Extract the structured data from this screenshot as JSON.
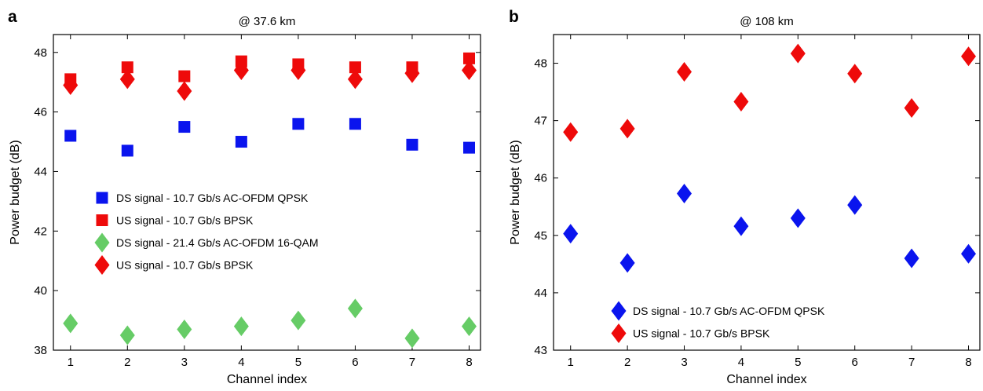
{
  "chart_data": [
    {
      "type": "scatter",
      "panel_label": "a",
      "title": "@ 37.6 km",
      "xlabel": "Channel index",
      "ylabel": "Power budget (dB)",
      "x": [
        1,
        2,
        3,
        4,
        5,
        6,
        7,
        8
      ],
      "xlim": [
        0.7,
        8.2
      ],
      "ylim": [
        38,
        48.6
      ],
      "xticks": [
        1,
        2,
        3,
        4,
        5,
        6,
        7,
        8
      ],
      "yticks": [
        38,
        40,
        42,
        44,
        46,
        48
      ],
      "grid": false,
      "legend_position": "center-left",
      "series": [
        {
          "name": "DS signal - 10.7 Gb/s AC-OFDM QPSK",
          "marker": "square",
          "color": "#0a14ee",
          "values": [
            45.2,
            44.7,
            45.5,
            45.0,
            45.6,
            45.6,
            44.9,
            44.8
          ]
        },
        {
          "name": "US signal - 10.7 Gb/s BPSK",
          "marker": "square",
          "color": "#ee0a0a",
          "values": [
            47.1,
            47.5,
            47.2,
            47.7,
            47.6,
            47.5,
            47.5,
            47.8
          ]
        },
        {
          "name": "DS signal - 21.4 Gb/s AC-OFDM 16-QAM",
          "marker": "diamond",
          "color": "#66cc66",
          "values": [
            38.9,
            38.5,
            38.7,
            38.8,
            39.0,
            39.4,
            38.4,
            38.8
          ]
        },
        {
          "name": "US signal - 10.7 Gb/s BPSK",
          "marker": "diamond",
          "color": "#ee0a0a",
          "values": [
            46.9,
            47.1,
            46.7,
            47.4,
            47.4,
            47.1,
            47.3,
            47.4
          ]
        }
      ]
    },
    {
      "type": "scatter",
      "panel_label": "b",
      "title": "@ 108 km",
      "xlabel": "Channel index",
      "ylabel": "Power budget (dB)",
      "x": [
        1,
        2,
        3,
        4,
        5,
        6,
        7,
        8
      ],
      "xlim": [
        0.7,
        8.2
      ],
      "ylim": [
        43,
        48.5
      ],
      "xticks": [
        1,
        2,
        3,
        4,
        5,
        6,
        7,
        8
      ],
      "yticks": [
        43,
        44,
        45,
        46,
        47,
        48
      ],
      "grid": false,
      "legend_position": "bottom-left",
      "series": [
        {
          "name": "DS signal - 10.7 Gb/s AC-OFDM QPSK",
          "marker": "diamond",
          "color": "#0a14ee",
          "values": [
            45.03,
            44.52,
            45.73,
            45.16,
            45.3,
            45.53,
            44.6,
            44.68
          ]
        },
        {
          "name": "US signal - 10.7 Gb/s BPSK",
          "marker": "diamond",
          "color": "#ee0a0a",
          "values": [
            46.8,
            46.86,
            47.85,
            47.33,
            48.17,
            47.82,
            47.22,
            48.12
          ]
        }
      ]
    }
  ]
}
